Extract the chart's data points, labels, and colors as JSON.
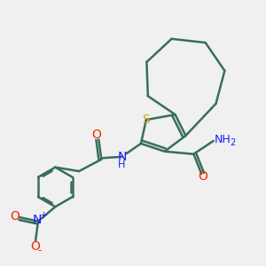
{
  "bg_color": "#f0f0f0",
  "bond_color": "#3a6e5a",
  "bond_width": 1.8,
  "atom_colors": {
    "S": "#c8a800",
    "N": "#1a1aff",
    "O": "#ff2200",
    "C": "#3a6e5a",
    "H": "#3a6e5a"
  },
  "font_size_atom": 9,
  "font_size_label": 8
}
